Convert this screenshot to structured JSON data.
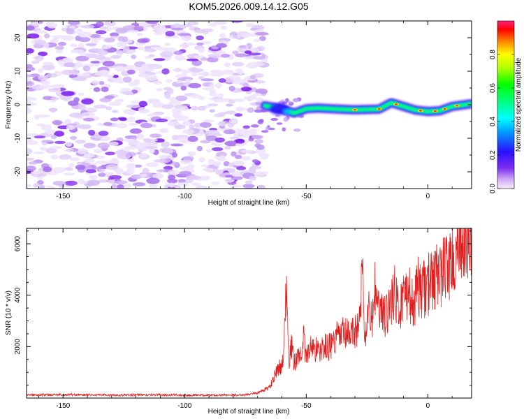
{
  "figure_title": "KOM5.2026.009.14.12.G05",
  "chart_data": [
    {
      "type": "heatmap",
      "title": "KOM5.2026.009.14.12.G05",
      "xlabel": "Height of straight line (km)",
      "ylabel": "Frequency (Hz)",
      "xlim": [
        -165,
        18
      ],
      "ylim": [
        -25,
        25
      ],
      "x_ticks": [
        -150,
        -100,
        -50,
        0
      ],
      "x_tick_labels": [
        "-150",
        "-100",
        "-50",
        "0"
      ],
      "y_ticks": [
        -20,
        -10,
        0,
        10,
        20
      ],
      "y_tick_labels": [
        "-20",
        "-10",
        "0",
        "10",
        "20"
      ],
      "noise_region_km": [
        -165,
        -67
      ],
      "signal_ridge": {
        "x_km": [
          -67,
          -60,
          -55,
          -50,
          -45,
          -40,
          -30,
          -20,
          -15,
          -10,
          -5,
          0,
          5,
          10,
          18
        ],
        "freq_hz": [
          -0.3,
          -1.2,
          -2.5,
          -1.2,
          -1.0,
          -1.2,
          -1.5,
          -1.3,
          0.6,
          -0.5,
          -1.6,
          -2.0,
          -1.8,
          -0.5,
          0.3
        ]
      },
      "colorbar": {
        "label": "Normalized spectral amplitude",
        "range": [
          0.0,
          1.0
        ],
        "ticks": [
          0.0,
          0.2,
          0.4,
          0.6,
          0.8
        ],
        "tick_labels": [
          "0.0",
          "0.2",
          "0.4",
          "0.6",
          "0.8"
        ]
      }
    },
    {
      "type": "line",
      "xlabel": "Height of straight line (km)",
      "ylabel": "SNR (10 * v/v)",
      "xlim": [
        -165,
        18
      ],
      "ylim": [
        0,
        6600
      ],
      "x_ticks": [
        -150,
        -100,
        -50,
        0
      ],
      "x_tick_labels": [
        "-150",
        "-100",
        "-50",
        "0"
      ],
      "y_ticks": [
        2000,
        4000,
        6000
      ],
      "y_tick_labels": [
        "2000",
        "4000",
        "6000"
      ],
      "color": "#e02020",
      "series": [
        {
          "name": "SNR",
          "x": [
            -165,
            -150,
            -130,
            -110,
            -90,
            -75,
            -70,
            -65,
            -62,
            -60,
            -59,
            -58,
            -57,
            -56,
            -55,
            -53,
            -51,
            -50,
            -48,
            -45,
            -42,
            -40,
            -38,
            -35,
            -32,
            -30,
            -28,
            -27,
            -26,
            -25,
            -24,
            -23,
            -22,
            -20,
            -18,
            -16,
            -14,
            -12,
            -10,
            -8,
            -6,
            -4,
            -2,
            0,
            2,
            4,
            6,
            8,
            10,
            12,
            14,
            16,
            18
          ],
          "y": [
            120,
            130,
            115,
            125,
            110,
            130,
            200,
            420,
            1050,
            1300,
            2300,
            4550,
            1500,
            2000,
            1400,
            1600,
            2300,
            1500,
            2100,
            1800,
            2000,
            2000,
            2300,
            2500,
            2400,
            2600,
            2900,
            5500,
            2300,
            3000,
            3400,
            2800,
            4300,
            3400,
            3100,
            3500,
            4200,
            3400,
            4000,
            4200,
            3500,
            4300,
            4200,
            4400,
            4600,
            4800,
            4900,
            5200,
            5300,
            5700,
            5800,
            6000,
            6350
          ]
        }
      ]
    }
  ]
}
